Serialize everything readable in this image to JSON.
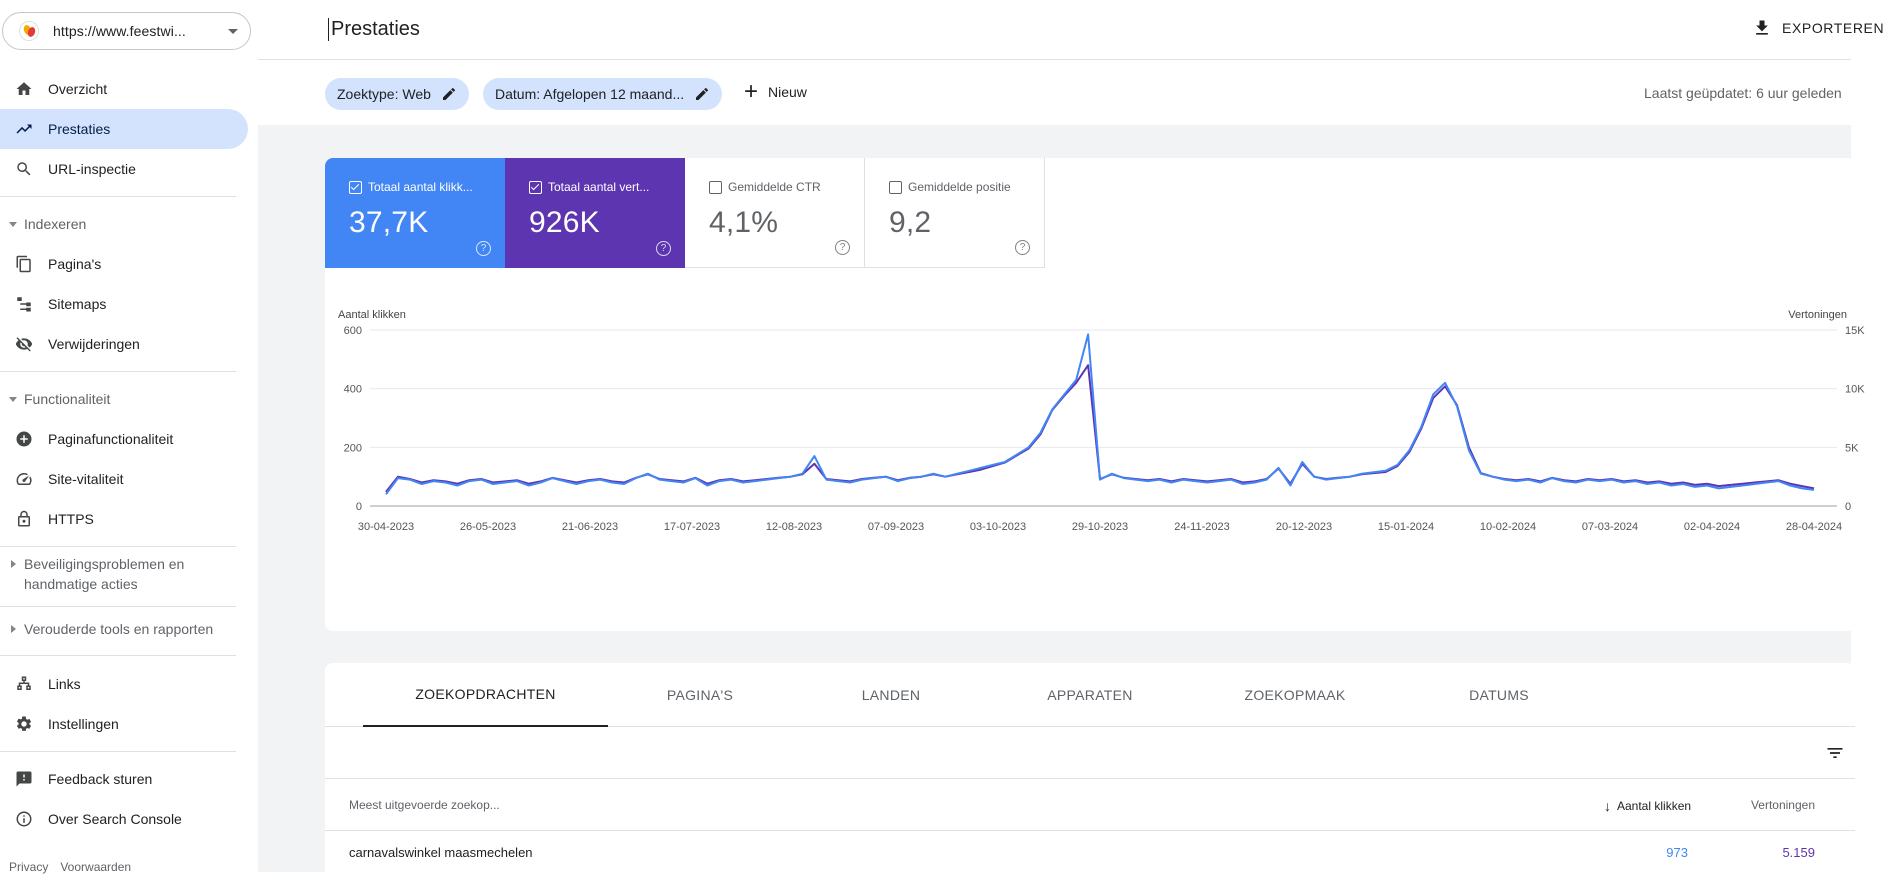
{
  "property": {
    "url": "https://www.feestwi..."
  },
  "sidebar": {
    "items_top": [
      {
        "label": "Overzicht",
        "icon": "home-icon"
      },
      {
        "label": "Prestaties",
        "icon": "trending-up-icon"
      },
      {
        "label": "URL-inspectie",
        "icon": "search-icon"
      }
    ],
    "indexeren": {
      "title": "Indexeren",
      "items": [
        {
          "label": "Pagina's",
          "icon": "pages-icon"
        },
        {
          "label": "Sitemaps",
          "icon": "sitemap-icon"
        },
        {
          "label": "Verwijderingen",
          "icon": "eye-off-icon"
        }
      ]
    },
    "functionaliteit": {
      "title": "Functionaliteit",
      "items": [
        {
          "label": "Paginafunctionaliteit",
          "icon": "plus-circle-icon"
        },
        {
          "label": "Site-vitaliteit",
          "icon": "speed-icon"
        },
        {
          "label": "HTTPS",
          "icon": "lock-icon"
        }
      ]
    },
    "security_section": "Beveiligingsproblemen en handmatige acties",
    "legacy_section": "Verouderde tools en rapporten",
    "items_bottom": [
      {
        "label": "Links",
        "icon": "links-icon"
      },
      {
        "label": "Instellingen",
        "icon": "settings-icon"
      }
    ],
    "items_footer": [
      {
        "label": "Feedback sturen",
        "icon": "feedback-icon"
      },
      {
        "label": "Over Search Console",
        "icon": "info-icon"
      }
    ],
    "footer": {
      "privacy": "Privacy",
      "terms": "Voorwaarden"
    }
  },
  "header": {
    "title": "Prestaties",
    "export_label": "EXPORTEREN"
  },
  "filters": {
    "chip_type": "Zoektype: Web",
    "chip_date": "Datum: Afgelopen 12 maand...",
    "new_label": "Nieuw",
    "last_updated": "Laatst geüpdatet: 6 uur geleden"
  },
  "metrics": [
    {
      "label": "Totaal aantal klikk...",
      "value": "37,7K",
      "checked": true
    },
    {
      "label": "Totaal aantal vert...",
      "value": "926K",
      "checked": true
    },
    {
      "label": "Gemiddelde CTR",
      "value": "4,1%",
      "checked": false
    },
    {
      "label": "Gemiddelde positie",
      "value": "9,2",
      "checked": false
    }
  ],
  "colors": {
    "clicks": "#4285f4",
    "impressions": "#5e35b1",
    "active_nav": "#d3e3fd"
  },
  "chart_data": {
    "type": "line",
    "ylabel_left": "Aantal klikken",
    "ylabel_right": "Vertoningen",
    "y_left_ticks": [
      "600",
      "400",
      "200",
      "0"
    ],
    "y_right_ticks": [
      "15K",
      "10K",
      "5K",
      "0"
    ],
    "ylim_left": [
      0,
      600
    ],
    "ylim_right": [
      0,
      15000
    ],
    "x_ticks": [
      "30-04-2023",
      "26-05-2023",
      "21-06-2023",
      "17-07-2023",
      "12-08-2023",
      "07-09-2023",
      "03-10-2023",
      "29-10-2023",
      "24-11-2023",
      "20-12-2023",
      "15-01-2024",
      "10-02-2024",
      "07-03-2024",
      "02-04-2024",
      "28-04-2024"
    ],
    "x_start": "2023-04-30",
    "x_end": "2024-04-28",
    "grid": true,
    "series": [
      {
        "name": "Aantal klikken",
        "color": "#4285f4",
        "values": [
          40,
          95,
          90,
          75,
          85,
          80,
          70,
          85,
          90,
          75,
          80,
          85,
          70,
          80,
          95,
          85,
          75,
          85,
          90,
          80,
          75,
          95,
          110,
          90,
          85,
          80,
          95,
          70,
          85,
          90,
          80,
          85,
          90,
          95,
          100,
          110,
          170,
          90,
          85,
          80,
          90,
          95,
          100,
          85,
          95,
          100,
          110,
          100,
          110,
          120,
          130,
          140,
          150,
          175,
          200,
          250,
          330,
          380,
          430,
          585,
          90,
          110,
          95,
          90,
          85,
          90,
          80,
          90,
          85,
          80,
          85,
          90,
          75,
          80,
          90,
          130,
          70,
          150,
          100,
          90,
          95,
          100,
          110,
          115,
          120,
          140,
          190,
          270,
          380,
          420,
          340,
          190,
          110,
          100,
          90,
          85,
          90,
          80,
          95,
          85,
          80,
          90,
          85,
          90,
          80,
          85,
          75,
          80,
          70,
          75,
          65,
          70,
          60,
          65,
          70,
          75,
          80,
          85,
          70,
          60,
          55
        ]
      },
      {
        "name": "Vertoningen",
        "color": "#5e35b1",
        "values": [
          1200,
          2500,
          2300,
          2000,
          2200,
          2100,
          1900,
          2200,
          2300,
          2000,
          2100,
          2200,
          1900,
          2100,
          2400,
          2200,
          2000,
          2200,
          2300,
          2100,
          2000,
          2400,
          2700,
          2300,
          2200,
          2100,
          2400,
          1900,
          2200,
          2300,
          2100,
          2200,
          2300,
          2400,
          2500,
          2700,
          3600,
          2300,
          2200,
          2100,
          2300,
          2400,
          2500,
          2200,
          2400,
          2500,
          2700,
          2500,
          2700,
          2900,
          3100,
          3400,
          3700,
          4300,
          4900,
          6100,
          8200,
          9400,
          10500,
          12000,
          2300,
          2700,
          2400,
          2300,
          2200,
          2300,
          2100,
          2300,
          2200,
          2100,
          2200,
          2300,
          2000,
          2100,
          2300,
          3200,
          1900,
          3600,
          2500,
          2300,
          2400,
          2500,
          2700,
          2800,
          2900,
          3400,
          4600,
          6600,
          9200,
          10200,
          8600,
          5000,
          2800,
          2500,
          2300,
          2200,
          2300,
          2100,
          2400,
          2200,
          2100,
          2300,
          2200,
          2300,
          2100,
          2200,
          2000,
          2100,
          1900,
          2000,
          1800,
          1900,
          1700,
          1800,
          1900,
          2000,
          2100,
          2200,
          1900,
          1700,
          1500
        ]
      }
    ]
  },
  "tabs": [
    "ZOEKOPDRACHTEN",
    "PAGINA'S",
    "LANDEN",
    "APPARATEN",
    "ZOEKOPMAAK",
    "DATUMS"
  ],
  "table": {
    "col_query": "Meest uitgevoerde zoekop...",
    "col_clicks": "Aantal klikken",
    "col_impr": "Vertoningen",
    "rows": [
      {
        "query": "carnavalswinkel maasmechelen",
        "clicks": "973",
        "impressions": "5.159"
      }
    ]
  }
}
